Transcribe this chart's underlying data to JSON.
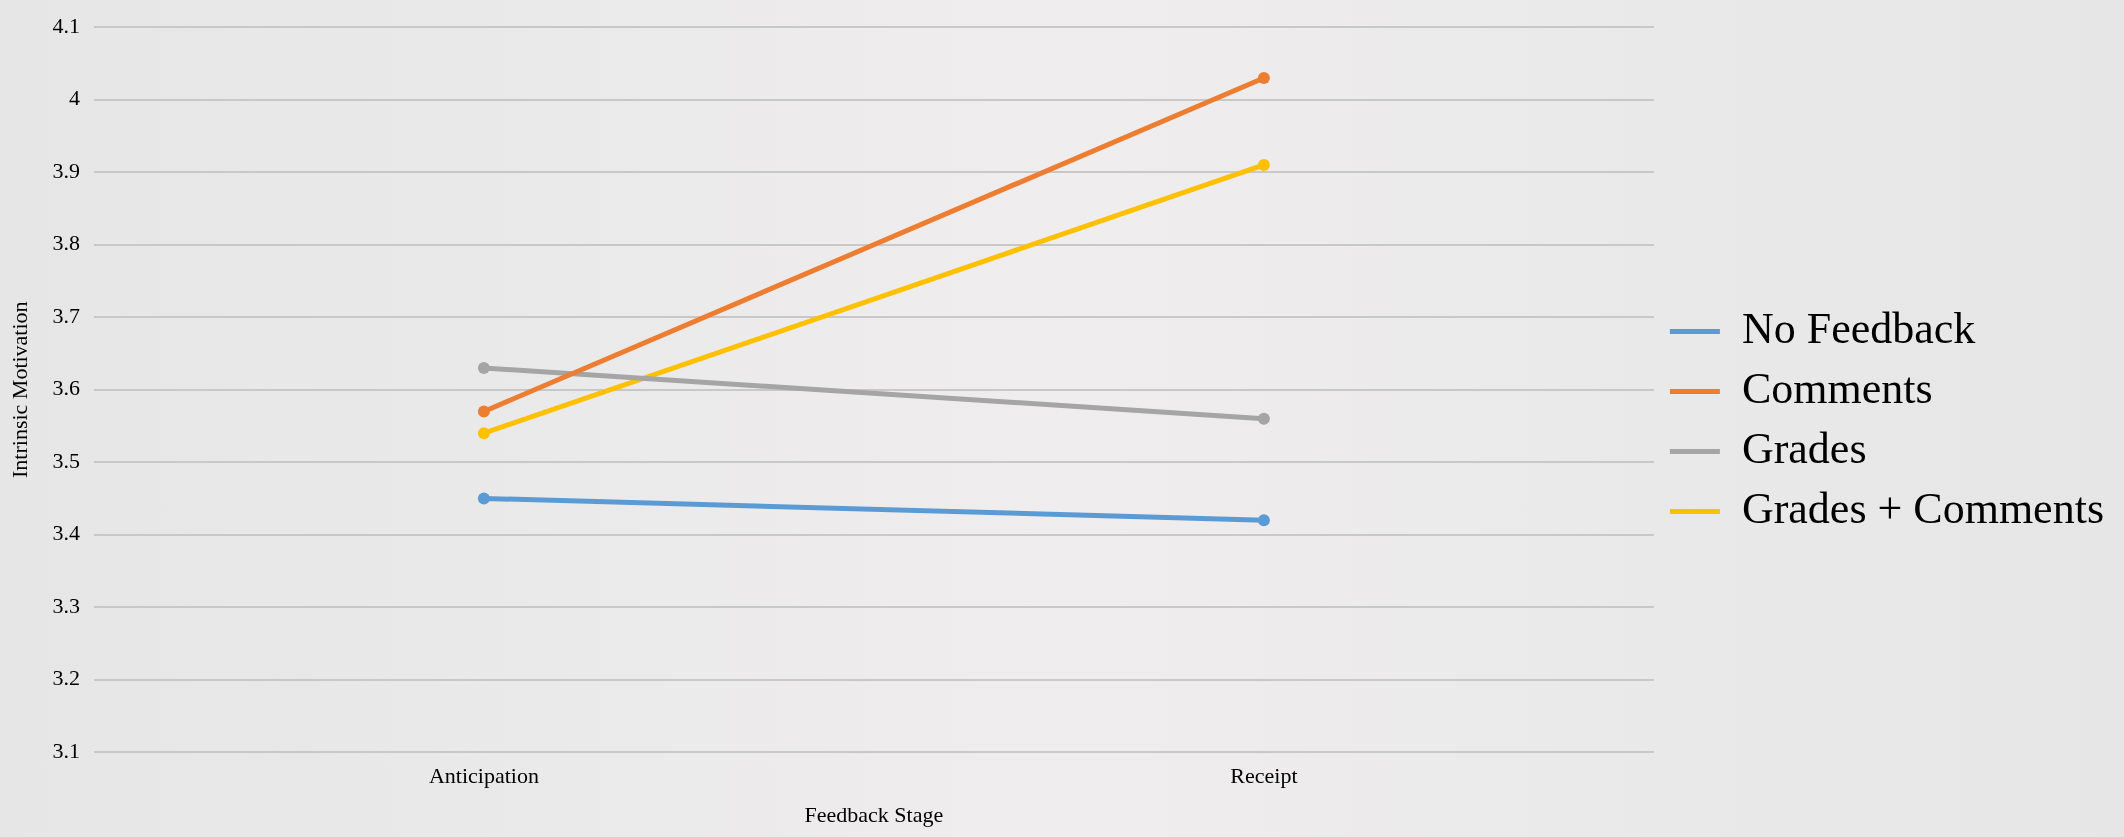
{
  "chart_data": {
    "type": "line",
    "xlabel": "Feedback Stage",
    "ylabel": "Intrinsic Motivation",
    "categories": [
      "Anticipation",
      "Receipt"
    ],
    "series": [
      {
        "name": "No Feedback",
        "color": "#5b9bd5",
        "values": [
          3.45,
          3.42
        ]
      },
      {
        "name": "Comments",
        "color": "#ed7d31",
        "values": [
          3.57,
          4.03
        ]
      },
      {
        "name": "Grades",
        "color": "#a5a5a5",
        "values": [
          3.63,
          3.56
        ]
      },
      {
        "name": "Grades + Comments",
        "color": "#ffc000",
        "values": [
          3.54,
          3.91
        ]
      }
    ],
    "ylim": [
      3.1,
      4.1
    ],
    "yticks": [
      3.1,
      3.2,
      3.3,
      3.4,
      3.5,
      3.6,
      3.7,
      3.8,
      3.9,
      4,
      4.1
    ],
    "grid": "y",
    "legend": "right",
    "marker": "circle",
    "line_style": "solid"
  }
}
